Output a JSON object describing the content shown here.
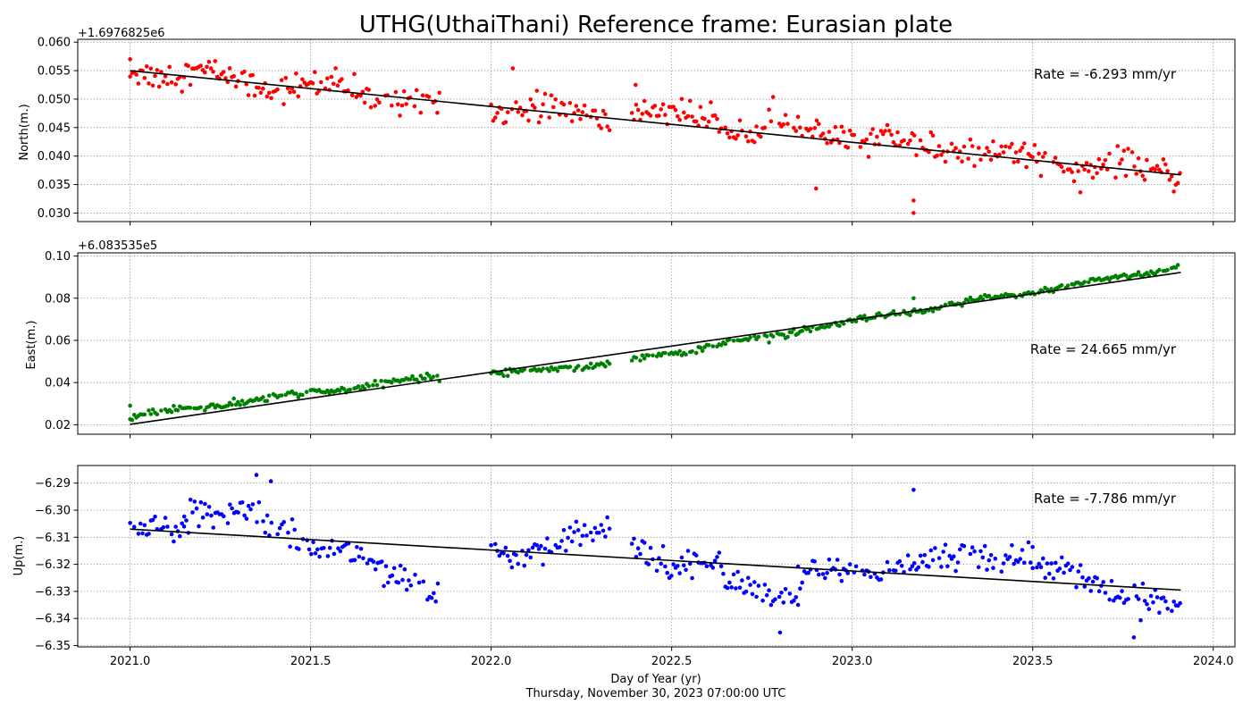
{
  "title": "UTHG(UthaiThani) Reference frame: Eurasian plate",
  "xlabel": "Day of Year (yr)",
  "footer_date": "Thursday, November 30, 2023 07:00:00 UTC",
  "colors": {
    "north": "#ff0000",
    "east": "#008000",
    "up": "#0000ff",
    "fit": "#000000",
    "grid": "#999999"
  },
  "chart_data": [
    {
      "type": "scatter",
      "name": "north",
      "ylabel": "North(m.)",
      "offset_label": "+1.6976825e6",
      "rate_label": "Rate = -6.293 mm/yr",
      "xlim": [
        2020.855,
        2024.06
      ],
      "ylim": [
        0.0285,
        0.0605
      ],
      "xticks": [
        2021.0,
        2021.5,
        2022.0,
        2022.5,
        2023.0,
        2023.5,
        2024.0
      ],
      "yticks": [
        0.03,
        0.035,
        0.04,
        0.045,
        0.05,
        0.055,
        0.06
      ],
      "yticklabels": [
        "0.030",
        "0.035",
        "0.040",
        "0.045",
        "0.050",
        "0.055",
        "0.060"
      ],
      "fit_line": [
        [
          2021.0,
          0.055
        ],
        [
          2023.91,
          0.0367
        ]
      ],
      "segments": [
        {
          "x": [
            2021.0,
            2021.86
          ],
          "y": [
            0.0555,
            0.0495
          ],
          "noise": 0.0022
        },
        {
          "x": [
            2022.0,
            2022.33
          ],
          "y": [
            0.049,
            0.0468
          ],
          "noise": 0.0022
        },
        {
          "x": [
            2022.39,
            2023.91
          ],
          "y": [
            0.048,
            0.0365
          ],
          "noise": 0.0022
        }
      ],
      "outliers": [
        [
          2021.0,
          0.057
        ],
        [
          2022.06,
          0.0554
        ],
        [
          2022.4,
          0.0525
        ],
        [
          2022.9,
          0.0343
        ],
        [
          2023.17,
          0.0322
        ],
        [
          2023.17,
          0.03
        ]
      ]
    },
    {
      "type": "scatter",
      "name": "east",
      "ylabel": "East(m.)",
      "offset_label": "+6.083535e5",
      "rate_label": "Rate = 24.665 mm/yr",
      "xlim": [
        2020.855,
        2024.06
      ],
      "ylim": [
        0.0155,
        0.1015
      ],
      "xticks": [
        2021.0,
        2021.5,
        2022.0,
        2022.5,
        2023.0,
        2023.5,
        2024.0
      ],
      "yticks": [
        0.02,
        0.04,
        0.06,
        0.08,
        0.1
      ],
      "yticklabels": [
        "0.02",
        "0.04",
        "0.06",
        "0.08",
        "0.10"
      ],
      "fit_line": [
        [
          2021.0,
          0.0202
        ],
        [
          2023.91,
          0.0922
        ]
      ],
      "segments": [
        {
          "x": [
            2021.0,
            2021.86
          ],
          "y": [
            0.024,
            0.043
          ],
          "noise": 0.0015
        },
        {
          "x": [
            2022.0,
            2022.33
          ],
          "y": [
            0.044,
            0.049
          ],
          "noise": 0.0015
        },
        {
          "x": [
            2022.39,
            2023.91
          ],
          "y": [
            0.051,
            0.095
          ],
          "noise": 0.0015
        }
      ],
      "outliers": [
        [
          2021.0,
          0.029
        ],
        [
          2023.17,
          0.08
        ]
      ]
    },
    {
      "type": "scatter",
      "name": "up",
      "ylabel": "Up(m.)",
      "offset_label": "",
      "rate_label": "Rate = -7.786 mm/yr",
      "xlim": [
        2020.855,
        2024.06
      ],
      "ylim": [
        -6.3505,
        -6.2835
      ],
      "xticks": [
        2021.0,
        2021.5,
        2022.0,
        2022.5,
        2023.0,
        2023.5,
        2024.0
      ],
      "yticks": [
        -6.35,
        -6.34,
        -6.33,
        -6.32,
        -6.31,
        -6.3,
        -6.29
      ],
      "yticklabels": [
        "−6.35",
        "−6.34",
        "−6.33",
        "−6.32",
        "−6.31",
        "−6.30",
        "−6.29"
      ],
      "fit_line": [
        [
          2021.0,
          -6.307
        ],
        [
          2023.91,
          -6.3295
        ]
      ],
      "segments": [
        {
          "x": [
            2021.0,
            2021.15
          ],
          "y": [
            -6.308,
            -6.306
          ],
          "noise": 0.004
        },
        {
          "x": [
            2021.15,
            2021.45
          ],
          "y": [
            -6.299,
            -6.304
          ],
          "noise": 0.0045
        },
        {
          "x": [
            2021.45,
            2021.86
          ],
          "y": [
            -6.308,
            -6.331
          ],
          "noise": 0.0045
        },
        {
          "x": [
            2022.0,
            2022.33
          ],
          "y": [
            -6.318,
            -6.308
          ],
          "noise": 0.0045
        },
        {
          "x": [
            2022.39,
            2022.85
          ],
          "y": [
            -6.313,
            -6.333
          ],
          "noise": 0.005
        },
        {
          "x": [
            2022.85,
            2023.5
          ],
          "y": [
            -6.325,
            -6.315
          ],
          "noise": 0.0045
        },
        {
          "x": [
            2023.5,
            2023.91
          ],
          "y": [
            -6.32,
            -6.338
          ],
          "noise": 0.0045
        }
      ],
      "outliers": [
        [
          2021.35,
          -6.287
        ],
        [
          2021.39,
          -6.2893
        ],
        [
          2023.17,
          -6.2925
        ],
        [
          2022.8,
          -6.3452
        ],
        [
          2023.78,
          -6.347
        ]
      ]
    }
  ]
}
